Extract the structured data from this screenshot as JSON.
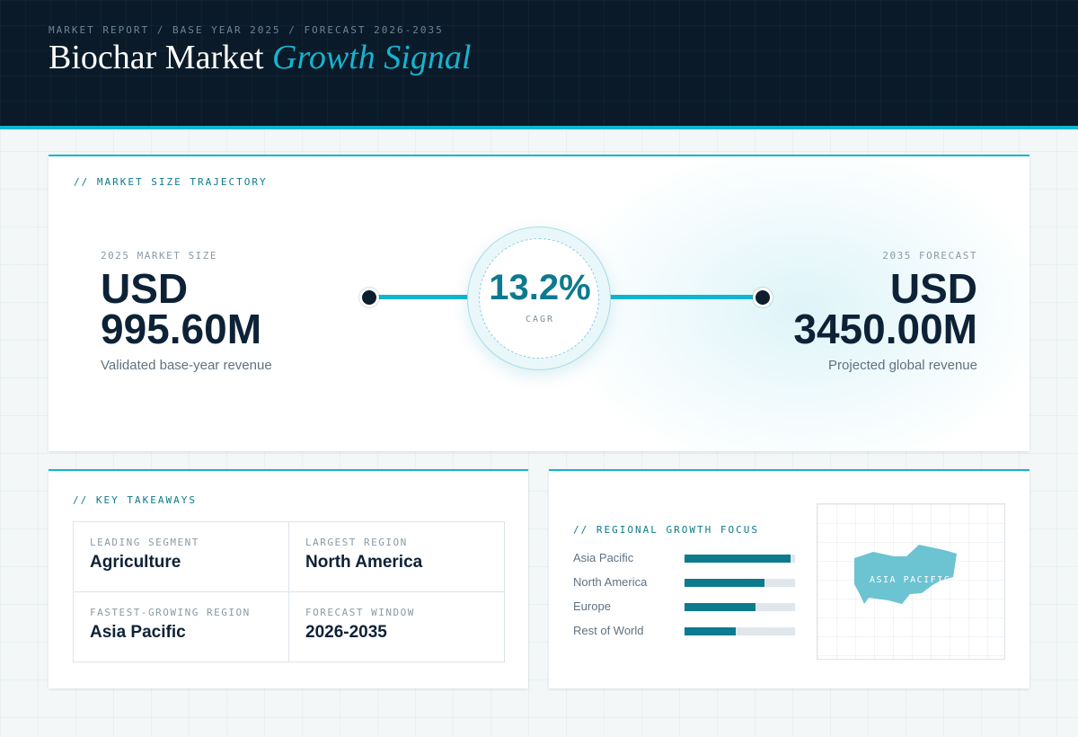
{
  "header": {
    "eyebrow": "MARKET REPORT / BASE YEAR 2025 / FORECAST 2026-2035",
    "title_main": "Biochar Market",
    "title_accent": "Growth Signal"
  },
  "trajectory": {
    "label": "// MARKET SIZE TRAJECTORY",
    "start": {
      "tag": "2025 MARKET SIZE",
      "currency": "USD",
      "value": "995.60M",
      "desc": "Validated base-year revenue"
    },
    "end": {
      "tag": "2035 FORECAST",
      "currency": "USD",
      "value": "3450.00M",
      "desc": "Projected global revenue"
    },
    "cagr": {
      "value": "13.2%",
      "label": "CAGR"
    }
  },
  "takeaways": {
    "label": "// KEY TAKEAWAYS",
    "items": [
      {
        "key": "LEADING SEGMENT",
        "value": "Agriculture"
      },
      {
        "key": "LARGEST REGION",
        "value": "North America"
      },
      {
        "key": "FASTEST-GROWING REGION",
        "value": "Asia Pacific"
      },
      {
        "key": "FORECAST WINDOW",
        "value": "2026-2035"
      }
    ]
  },
  "regional": {
    "label": "// REGIONAL GROWTH FOCUS",
    "bars": [
      {
        "name": "Asia Pacific",
        "level": 0.96
      },
      {
        "name": "North America",
        "level": 0.72
      },
      {
        "name": "Europe",
        "level": 0.64
      },
      {
        "name": "Rest of World",
        "level": 0.46
      }
    ],
    "map_label": "ASIA PACIFIC",
    "map_color": "#6cc3d1"
  },
  "colors": {
    "accent": "#10b5cf",
    "teal": "#0d7a8e",
    "navy": "#0a1a28"
  }
}
